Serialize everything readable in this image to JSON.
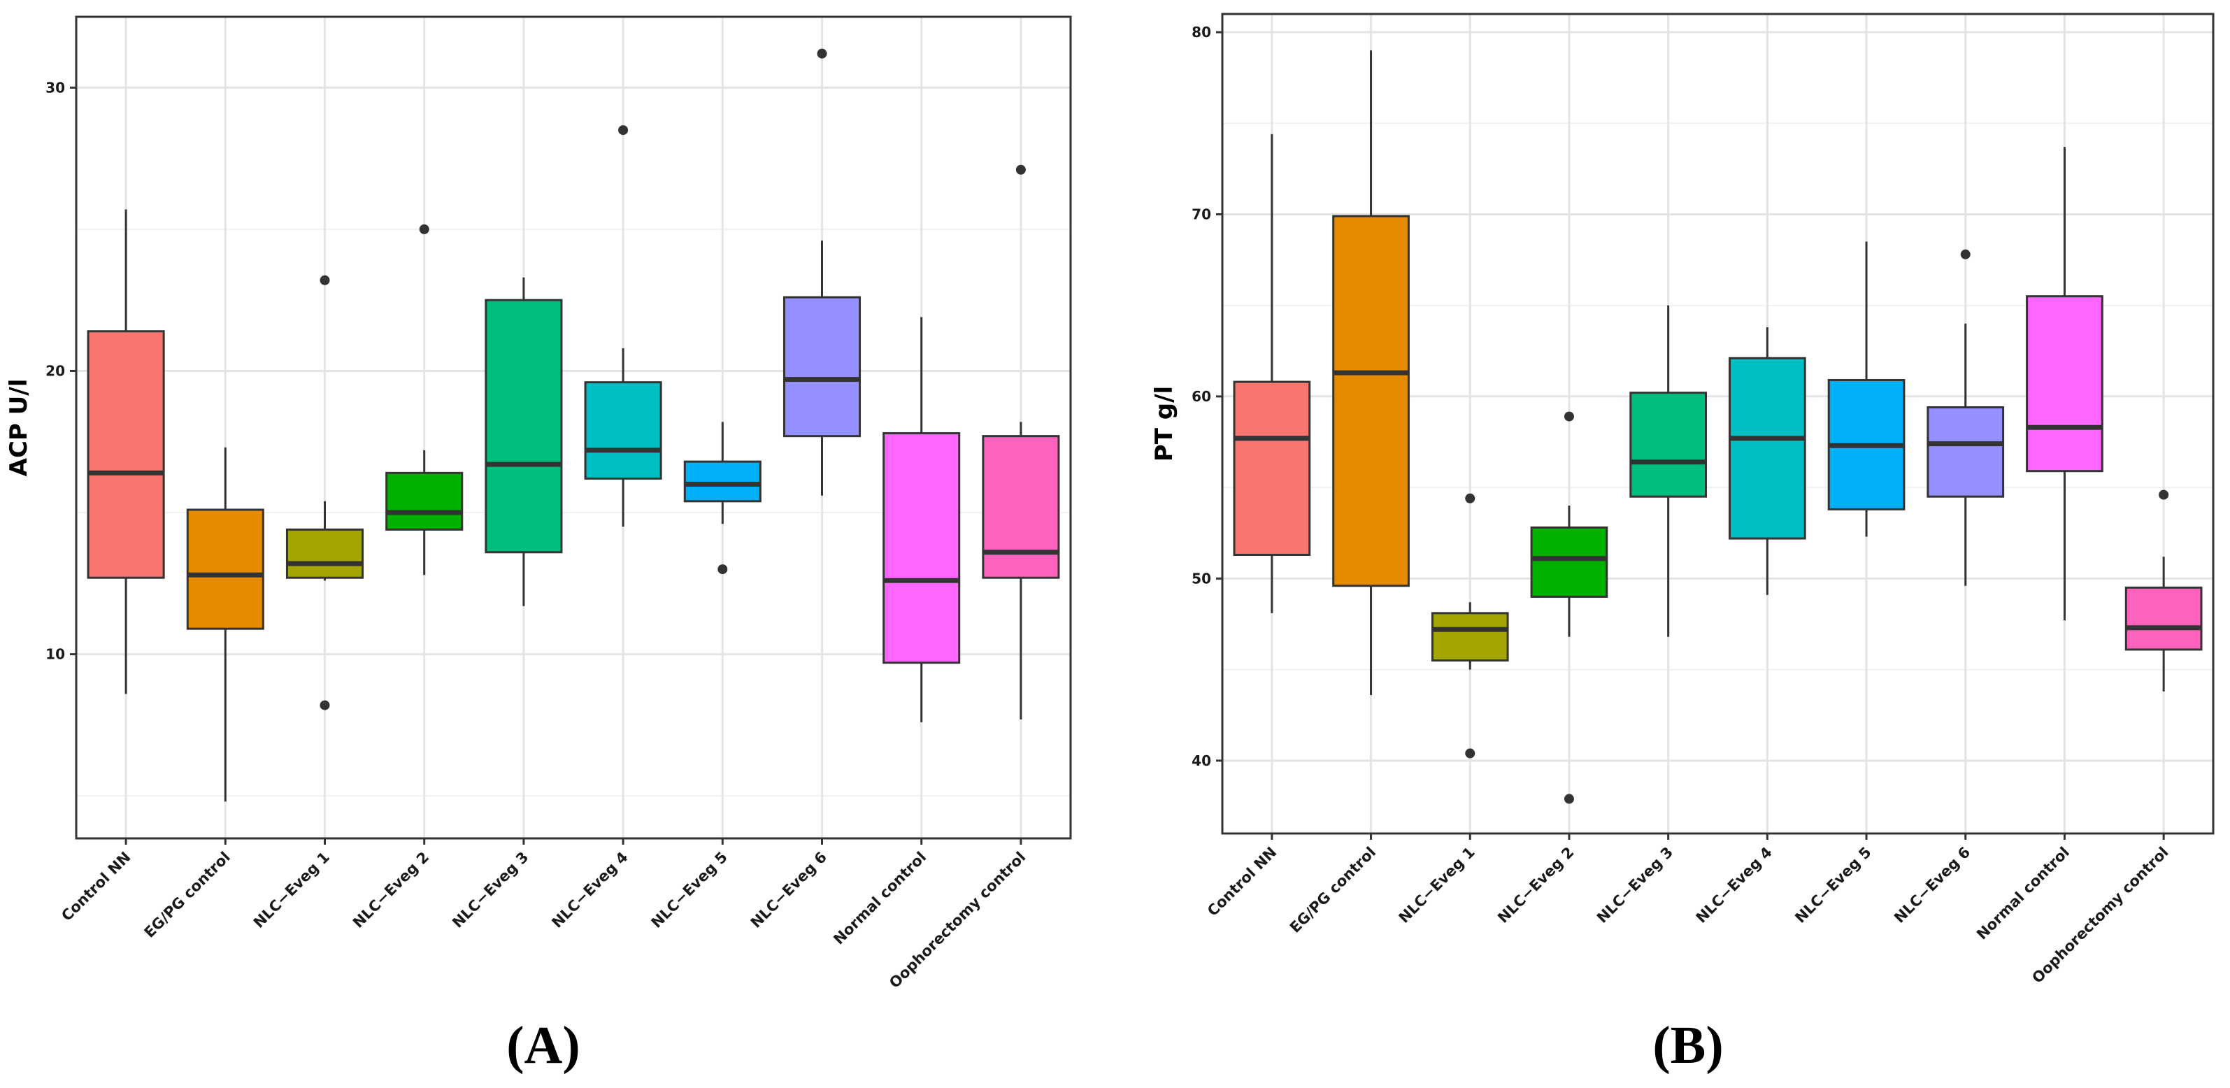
{
  "chart_data": [
    {
      "type": "box",
      "panel_label": "(A)",
      "title": "",
      "xlabel": "",
      "ylabel": "ACP U/l",
      "ylim": [
        3.5,
        32.5
      ],
      "yticks": [
        10,
        20,
        30
      ],
      "grid": true,
      "categories": [
        "Control NN",
        "EG/PG control",
        "NLC−Eveg 1",
        "NLC−Eveg 2",
        "NLC−Eveg 3",
        "NLC−Eveg 4",
        "NLC−Eveg 5",
        "NLC−Eveg 6",
        "Normal control",
        "Oophorectomy control"
      ],
      "colors": [
        "#F8766D",
        "#E68B00",
        "#A3A500",
        "#00B100",
        "#00BF7D",
        "#00BFC4",
        "#00B0F6",
        "#9590FF",
        "#FF66FF",
        "#FF62BC"
      ],
      "boxes": [
        {
          "whisker_low": 8.6,
          "q1": 12.7,
          "median": 16.4,
          "q3": 21.4,
          "whisker_high": 25.7,
          "outliers": []
        },
        {
          "whisker_low": 4.8,
          "q1": 10.9,
          "median": 12.8,
          "q3": 15.1,
          "whisker_high": 17.3,
          "outliers": []
        },
        {
          "whisker_low": 12.6,
          "q1": 12.7,
          "median": 13.2,
          "q3": 14.4,
          "whisker_high": 15.4,
          "outliers": [
            23.2,
            8.2
          ]
        },
        {
          "whisker_low": 12.8,
          "q1": 14.4,
          "median": 15.0,
          "q3": 16.4,
          "whisker_high": 17.2,
          "outliers": [
            25.0
          ]
        },
        {
          "whisker_low": 11.7,
          "q1": 13.6,
          "median": 16.7,
          "q3": 22.5,
          "whisker_high": 23.3,
          "outliers": []
        },
        {
          "whisker_low": 14.5,
          "q1": 16.2,
          "median": 17.2,
          "q3": 19.6,
          "whisker_high": 20.8,
          "outliers": [
            28.5
          ]
        },
        {
          "whisker_low": 14.6,
          "q1": 15.4,
          "median": 16.0,
          "q3": 16.8,
          "whisker_high": 18.2,
          "outliers": [
            13.0
          ]
        },
        {
          "whisker_low": 15.6,
          "q1": 17.7,
          "median": 19.7,
          "q3": 22.6,
          "whisker_high": 24.6,
          "outliers": [
            31.2
          ]
        },
        {
          "whisker_low": 7.6,
          "q1": 9.7,
          "median": 12.6,
          "q3": 17.8,
          "whisker_high": 21.9,
          "outliers": []
        },
        {
          "whisker_low": 7.7,
          "q1": 12.7,
          "median": 13.6,
          "q3": 17.7,
          "whisker_high": 18.2,
          "outliers": [
            27.1
          ]
        }
      ]
    },
    {
      "type": "box",
      "panel_label": "(B)",
      "title": "",
      "xlabel": "",
      "ylabel": "PT g/l",
      "ylim": [
        36,
        81
      ],
      "yticks": [
        40,
        50,
        60,
        70,
        80
      ],
      "grid": true,
      "categories": [
        "Control NN",
        "EG/PG control",
        "NLC−Eveg 1",
        "NLC−Eveg 2",
        "NLC−Eveg 3",
        "NLC−Eveg 4",
        "NLC−Eveg 5",
        "NLC−Eveg 6",
        "Normal control",
        "Oophorectomy control"
      ],
      "colors": [
        "#F8766D",
        "#E68B00",
        "#A3A500",
        "#00B100",
        "#00BF7D",
        "#00BFC4",
        "#00B0F6",
        "#9590FF",
        "#FF66FF",
        "#FF62BC"
      ],
      "boxes": [
        {
          "whisker_low": 48.1,
          "q1": 51.3,
          "median": 57.7,
          "q3": 60.8,
          "whisker_high": 74.4,
          "outliers": []
        },
        {
          "whisker_low": 43.6,
          "q1": 49.6,
          "median": 61.3,
          "q3": 69.9,
          "whisker_high": 79.0,
          "outliers": []
        },
        {
          "whisker_low": 45.0,
          "q1": 45.5,
          "median": 47.2,
          "q3": 48.1,
          "whisker_high": 48.7,
          "outliers": [
            54.4,
            40.4
          ]
        },
        {
          "whisker_low": 46.8,
          "q1": 49.0,
          "median": 51.1,
          "q3": 52.8,
          "whisker_high": 54.0,
          "outliers": [
            58.9,
            37.9
          ]
        },
        {
          "whisker_low": 46.8,
          "q1": 54.5,
          "median": 56.4,
          "q3": 60.2,
          "whisker_high": 65.0,
          "outliers": []
        },
        {
          "whisker_low": 49.1,
          "q1": 52.2,
          "median": 57.7,
          "q3": 62.1,
          "whisker_high": 63.8,
          "outliers": []
        },
        {
          "whisker_low": 52.3,
          "q1": 53.8,
          "median": 57.3,
          "q3": 60.9,
          "whisker_high": 68.5,
          "outliers": []
        },
        {
          "whisker_low": 49.6,
          "q1": 54.5,
          "median": 57.4,
          "q3": 59.4,
          "whisker_high": 64.0,
          "outliers": [
            67.8
          ]
        },
        {
          "whisker_low": 47.7,
          "q1": 55.9,
          "median": 58.3,
          "q3": 65.5,
          "whisker_high": 73.7,
          "outliers": []
        },
        {
          "whisker_low": 43.8,
          "q1": 46.1,
          "median": 47.3,
          "q3": 49.5,
          "whisker_high": 51.2,
          "outliers": [
            54.6
          ]
        }
      ]
    }
  ]
}
